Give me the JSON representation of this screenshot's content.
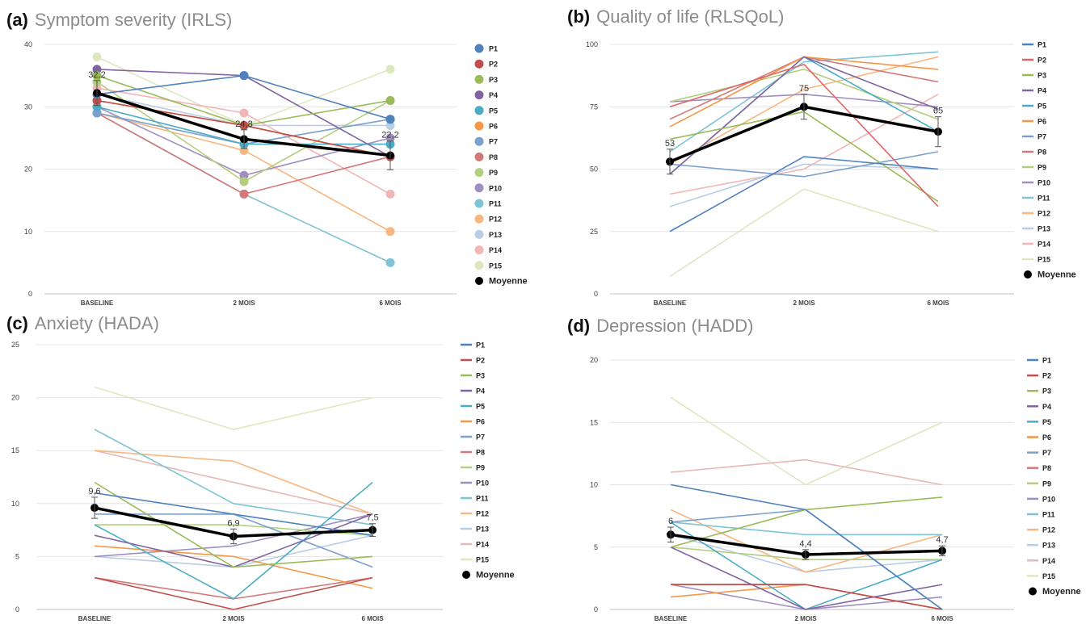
{
  "chart_data": [
    {
      "panel": "(a)",
      "type": "line",
      "title": "Symptom severity (IRLS)",
      "categories": [
        "BASELINE",
        "2 MOIS",
        "6 MOIS"
      ],
      "ylim": [
        0,
        40
      ],
      "yticks": [
        0,
        10,
        20,
        30,
        40
      ],
      "grid": true,
      "markers": true,
      "legend_position": "right",
      "series": [
        {
          "name": "P1",
          "color": "#4f81bd",
          "values": [
            32,
            35,
            28
          ]
        },
        {
          "name": "P2",
          "color": "#c0504d",
          "values": [
            31,
            27,
            22
          ]
        },
        {
          "name": "P3",
          "color": "#9bbb59",
          "values": [
            35,
            27,
            31
          ]
        },
        {
          "name": "P4",
          "color": "#8064a2",
          "values": [
            36,
            35,
            22
          ]
        },
        {
          "name": "P5",
          "color": "#4bacc6",
          "values": [
            30,
            24,
            24
          ]
        },
        {
          "name": "P6",
          "color": "#f79646",
          "values": [
            31,
            27,
            22
          ]
        },
        {
          "name": "P7",
          "color": "#7ba0cd",
          "values": [
            29,
            24,
            28
          ]
        },
        {
          "name": "P8",
          "color": "#d37978",
          "values": [
            29,
            16,
            22
          ]
        },
        {
          "name": "P9",
          "color": "#b3cf7e",
          "values": [
            34,
            18,
            31
          ]
        },
        {
          "name": "P10",
          "color": "#a18ec0",
          "values": [
            30,
            19,
            25
          ]
        },
        {
          "name": "P11",
          "color": "#7ec3d6",
          "values": [
            29,
            16,
            5
          ]
        },
        {
          "name": "P12",
          "color": "#f8b680",
          "values": [
            29,
            23,
            10
          ]
        },
        {
          "name": "P13",
          "color": "#b9cde5",
          "values": [
            32,
            27,
            27
          ]
        },
        {
          "name": "P14",
          "color": "#f2b6b6",
          "values": [
            33,
            29,
            16
          ]
        },
        {
          "name": "P15",
          "color": "#dde8c0",
          "values": [
            38,
            27,
            36
          ]
        },
        {
          "name": "Moyenne",
          "color": "#000000",
          "values": [
            32.2,
            24.8,
            22.2
          ]
        }
      ],
      "mean_labels": [
        "32,2",
        "24,8",
        "22,2"
      ],
      "mean_error": [
        2,
        1.5,
        2.3
      ]
    },
    {
      "panel": "(b)",
      "type": "line",
      "title": "Quality of life (RLSQoL)",
      "categories": [
        "BASELINE",
        "2 MOIS",
        "6 MOIS"
      ],
      "ylim": [
        0,
        100
      ],
      "yticks": [
        0,
        25,
        50,
        75,
        100
      ],
      "grid": true,
      "markers": false,
      "legend_position": "right",
      "series": [
        {
          "name": "P1",
          "color": "#4f81bd",
          "values": [
            25,
            55,
            50
          ]
        },
        {
          "name": "P2",
          "color": "#e06666",
          "values": [
            75,
            92,
            35
          ]
        },
        {
          "name": "P3",
          "color": "#9bbb59",
          "values": [
            62,
            73,
            37
          ]
        },
        {
          "name": "P4",
          "color": "#8064a2",
          "values": [
            48,
            95,
            74
          ]
        },
        {
          "name": "P5",
          "color": "#4bacc6",
          "values": [
            48,
            95,
            65
          ]
        },
        {
          "name": "P6",
          "color": "#f79646",
          "values": [
            67,
            95,
            90
          ]
        },
        {
          "name": "P7",
          "color": "#7ba0cd",
          "values": [
            52,
            47,
            57
          ]
        },
        {
          "name": "P8",
          "color": "#d37978",
          "values": [
            70,
            95,
            85
          ]
        },
        {
          "name": "P9",
          "color": "#b3cf7e",
          "values": [
            77,
            90,
            70
          ]
        },
        {
          "name": "P10",
          "color": "#a18ec0",
          "values": [
            77,
            80,
            75
          ]
        },
        {
          "name": "P11",
          "color": "#7ec3d6",
          "values": [
            57,
            93,
            97
          ]
        },
        {
          "name": "P12",
          "color": "#f8b680",
          "values": [
            52,
            82,
            95
          ]
        },
        {
          "name": "P13",
          "color": "#b9cde5",
          "values": [
            35,
            52,
            50
          ]
        },
        {
          "name": "P14",
          "color": "#f2b6b6",
          "values": [
            40,
            50,
            80
          ]
        },
        {
          "name": "P15",
          "color": "#dde8c0",
          "values": [
            7,
            42,
            25
          ]
        },
        {
          "name": "Moyenne",
          "color": "#000000",
          "values": [
            53,
            75,
            65
          ]
        }
      ],
      "mean_labels": [
        "53",
        "75",
        "65"
      ],
      "mean_error": [
        5,
        5,
        6
      ]
    },
    {
      "panel": "(c)",
      "type": "line",
      "title": "Anxiety (HADA)",
      "categories": [
        "BASELINE",
        "2 MOIS",
        "6 MOIS"
      ],
      "ylim": [
        0,
        25
      ],
      "yticks": [
        0,
        5,
        10,
        15,
        20,
        25
      ],
      "grid": true,
      "markers": false,
      "legend_position": "right",
      "series": [
        {
          "name": "P1",
          "color": "#4f81bd",
          "values": [
            11,
            9,
            7
          ]
        },
        {
          "name": "P2",
          "color": "#c0504d",
          "values": [
            3,
            0,
            3
          ]
        },
        {
          "name": "P3",
          "color": "#9bbb59",
          "values": [
            12,
            4,
            5
          ]
        },
        {
          "name": "P4",
          "color": "#8064a2",
          "values": [
            7,
            4,
            9
          ]
        },
        {
          "name": "P5",
          "color": "#4bacc6",
          "values": [
            8,
            1,
            12
          ]
        },
        {
          "name": "P6",
          "color": "#f79646",
          "values": [
            6,
            5,
            2
          ]
        },
        {
          "name": "P7",
          "color": "#7ba0cd",
          "values": [
            9,
            9,
            4
          ]
        },
        {
          "name": "P8",
          "color": "#d37978",
          "values": [
            3,
            1,
            3
          ]
        },
        {
          "name": "P9",
          "color": "#b3cf7e",
          "values": [
            8,
            8,
            7
          ]
        },
        {
          "name": "P10",
          "color": "#a18ec0",
          "values": [
            5,
            6,
            9
          ]
        },
        {
          "name": "P11",
          "color": "#7ec3d6",
          "values": [
            17,
            10,
            8
          ]
        },
        {
          "name": "P12",
          "color": "#f8b680",
          "values": [
            15,
            14,
            9
          ]
        },
        {
          "name": "P13",
          "color": "#b9cde5",
          "values": [
            5,
            4,
            7
          ]
        },
        {
          "name": "P14",
          "color": "#e6b8b7",
          "values": [
            15,
            12,
            9
          ]
        },
        {
          "name": "P15",
          "color": "#dde8c0",
          "values": [
            21,
            17,
            20
          ]
        },
        {
          "name": "Moyenne",
          "color": "#000000",
          "values": [
            9.6,
            6.9,
            7.5
          ]
        }
      ],
      "mean_labels": [
        "9,6",
        "6,9",
        "7,5"
      ],
      "mean_error": [
        1,
        0.7,
        0.6
      ]
    },
    {
      "panel": "(d)",
      "type": "line",
      "title": "Depression (HADD)",
      "categories": [
        "BASELINE",
        "2 MOIS",
        "6 MOIS"
      ],
      "ylim": [
        0,
        20
      ],
      "yticks": [
        0,
        5,
        10,
        15,
        20
      ],
      "grid": true,
      "markers": false,
      "legend_position": "right",
      "series": [
        {
          "name": "P1",
          "color": "#4f81bd",
          "values": [
            10,
            8,
            0
          ]
        },
        {
          "name": "P2",
          "color": "#c0504d",
          "values": [
            2,
            2,
            0
          ]
        },
        {
          "name": "P3",
          "color": "#9bbb59",
          "values": [
            5,
            8,
            9
          ]
        },
        {
          "name": "P4",
          "color": "#8064a2",
          "values": [
            5,
            0,
            2
          ]
        },
        {
          "name": "P5",
          "color": "#4bacc6",
          "values": [
            7,
            0,
            4
          ]
        },
        {
          "name": "P6",
          "color": "#f79646",
          "values": [
            1,
            2,
            0
          ]
        },
        {
          "name": "P7",
          "color": "#7ba0cd",
          "values": [
            7,
            8,
            0
          ]
        },
        {
          "name": "P8",
          "color": "#d37978",
          "values": [
            2,
            2,
            0
          ]
        },
        {
          "name": "P9",
          "color": "#b3cf7e",
          "values": [
            5,
            4,
            4
          ]
        },
        {
          "name": "P10",
          "color": "#a18ec0",
          "values": [
            2,
            0,
            1
          ]
        },
        {
          "name": "P11",
          "color": "#7ec3d6",
          "values": [
            7,
            6,
            6
          ]
        },
        {
          "name": "P12",
          "color": "#f8b680",
          "values": [
            8,
            3,
            6
          ]
        },
        {
          "name": "P13",
          "color": "#b9cde5",
          "values": [
            6,
            3,
            4
          ]
        },
        {
          "name": "P14",
          "color": "#e6b8b7",
          "values": [
            11,
            12,
            10
          ]
        },
        {
          "name": "P15",
          "color": "#dde8c0",
          "values": [
            17,
            10,
            15
          ]
        },
        {
          "name": "Moyenne",
          "color": "#000000",
          "values": [
            6,
            4.4,
            4.7
          ]
        }
      ],
      "mean_labels": [
        "6",
        "4,4",
        "4,7"
      ],
      "mean_error": [
        0.6,
        0.4,
        0.4
      ]
    }
  ]
}
